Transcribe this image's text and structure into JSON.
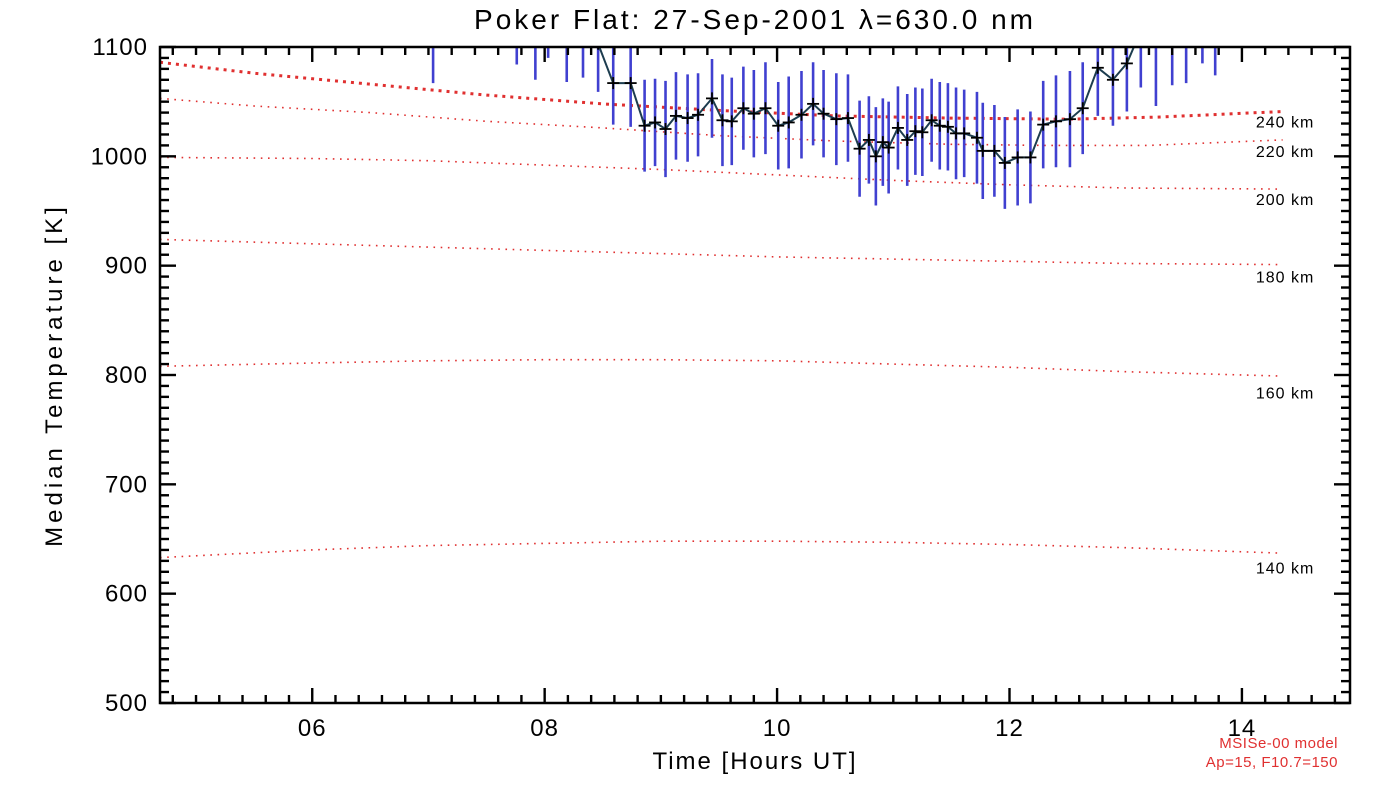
{
  "title": "Poker Flat: 27-Sep-2001 λ=630.0 nm",
  "axes": {
    "x": {
      "label": "Time [Hours UT]"
    },
    "y": {
      "label": "Median Temperature [K]"
    }
  },
  "annotation": {
    "line1": "MSISe-00 model",
    "line2": "Ap=15, F10.7=150"
  },
  "chart_data": {
    "type": "line",
    "title": "Poker Flat: 27-Sep-2001 λ=630.0 nm",
    "xlabel": "Time [Hours UT]",
    "ylabel": "Median Temperature [K]",
    "xlim": [
      4.69,
      14.93
    ],
    "ylim": [
      500,
      1100
    ],
    "grid": false,
    "x_major_ticks": [
      6,
      8,
      10,
      12,
      14
    ],
    "x_tick_labels": [
      "06",
      "08",
      "10",
      "12",
      "14"
    ],
    "x_minor_step": 0.2,
    "y_major_ticks": [
      500,
      600,
      700,
      800,
      900,
      1000,
      1100
    ],
    "y_tick_labels": [
      "500",
      "600",
      "700",
      "800",
      "900",
      "1000",
      "1100"
    ],
    "y_minor_step": 10,
    "model_color": "#e03030",
    "annotations": [
      "MSISe-00 model",
      "Ap=15, F10.7=150"
    ],
    "series": [
      {
        "name": "median-temperature",
        "marker": "plus",
        "color": "#1d3d4f",
        "marker_color": "#000000",
        "error_color": "#4040d0",
        "points": [
          [
            7.04,
            1112,
            45
          ],
          [
            7.17,
            1150,
            40
          ],
          [
            7.3,
            1155,
            40
          ],
          [
            7.43,
            1152,
            40
          ],
          [
            7.56,
            1148,
            40
          ],
          [
            7.66,
            1146,
            40
          ],
          [
            7.76,
            1128,
            44
          ],
          [
            7.92,
            1114,
            44
          ],
          [
            8.03,
            1134,
            44
          ],
          [
            8.19,
            1112,
            44
          ],
          [
            8.33,
            1116,
            44
          ],
          [
            8.46,
            1103,
            44
          ],
          [
            8.59,
            1067,
            38
          ],
          [
            8.74,
            1067,
            40
          ],
          [
            8.86,
            1028,
            42
          ],
          [
            8.95,
            1031,
            40
          ],
          [
            9.04,
            1025,
            44
          ],
          [
            9.13,
            1037,
            40
          ],
          [
            9.23,
            1035,
            40
          ],
          [
            9.32,
            1038,
            38
          ],
          [
            9.44,
            1053,
            36
          ],
          [
            9.53,
            1033,
            42
          ],
          [
            9.61,
            1032,
            40
          ],
          [
            9.71,
            1044,
            38
          ],
          [
            9.8,
            1039,
            40
          ],
          [
            9.9,
            1044,
            42
          ],
          [
            10.01,
            1028,
            40
          ],
          [
            10.1,
            1031,
            42
          ],
          [
            10.21,
            1038,
            40
          ],
          [
            10.31,
            1048,
            38
          ],
          [
            10.4,
            1039,
            40
          ],
          [
            10.51,
            1034,
            42
          ],
          [
            10.61,
            1035,
            40
          ],
          [
            10.71,
            1007,
            44
          ],
          [
            10.79,
            1015,
            40
          ],
          [
            10.85,
            1000,
            45
          ],
          [
            10.91,
            1013,
            40
          ],
          [
            10.96,
            1008,
            42
          ],
          [
            11.04,
            1026,
            38
          ],
          [
            11.12,
            1015,
            42
          ],
          [
            11.19,
            1023,
            40
          ],
          [
            11.25,
            1022,
            40
          ],
          [
            11.33,
            1033,
            38
          ],
          [
            11.4,
            1028,
            40
          ],
          [
            11.47,
            1027,
            40
          ],
          [
            11.54,
            1021,
            42
          ],
          [
            11.61,
            1021,
            40
          ],
          [
            11.72,
            1017,
            42
          ],
          [
            11.77,
            1005,
            44
          ],
          [
            11.87,
            1005,
            42
          ],
          [
            11.96,
            994,
            42
          ],
          [
            12.07,
            999,
            44
          ],
          [
            12.18,
            999,
            42
          ],
          [
            12.29,
            1029,
            40
          ],
          [
            12.4,
            1032,
            42
          ],
          [
            12.52,
            1034,
            44
          ],
          [
            12.63,
            1044,
            42
          ],
          [
            12.76,
            1081,
            44
          ],
          [
            12.89,
            1070,
            42
          ],
          [
            13.01,
            1085,
            44
          ],
          [
            13.13,
            1115,
            52
          ],
          [
            13.26,
            1118,
            72
          ],
          [
            13.4,
            1122,
            57
          ],
          [
            13.52,
            1125,
            58
          ],
          [
            13.66,
            1140,
            55
          ],
          [
            13.77,
            1130,
            56
          ]
        ]
      }
    ],
    "model_curves": [
      {
        "name": "240km",
        "label": "240 km",
        "bold": true,
        "label_at": [
          14.12,
          1031
        ],
        "points": [
          [
            4.69,
            1086
          ],
          [
            5.5,
            1076
          ],
          [
            6.5,
            1066
          ],
          [
            7.5,
            1056
          ],
          [
            8.5,
            1048
          ],
          [
            9.5,
            1042
          ],
          [
            10.5,
            1037
          ],
          [
            11.5,
            1035
          ],
          [
            12.5,
            1034
          ],
          [
            13.3,
            1036
          ],
          [
            14.35,
            1041
          ]
        ]
      },
      {
        "name": "220km",
        "label": "220 km",
        "bold": false,
        "label_at": [
          14.12,
          1004
        ],
        "points": [
          [
            4.69,
            1053
          ],
          [
            5.5,
            1046
          ],
          [
            6.5,
            1040
          ],
          [
            7.5,
            1032
          ],
          [
            8.5,
            1026
          ],
          [
            9.5,
            1019
          ],
          [
            10.5,
            1014
          ],
          [
            11.5,
            1011
          ],
          [
            12.3,
            1010
          ],
          [
            13.2,
            1010
          ],
          [
            14.35,
            1015
          ]
        ]
      },
      {
        "name": "200km",
        "label": "200 km",
        "bold": false,
        "label_at": [
          14.12,
          960
        ],
        "points": [
          [
            4.69,
            999
          ],
          [
            6,
            998
          ],
          [
            7,
            996
          ],
          [
            8,
            992
          ],
          [
            9,
            988
          ],
          [
            10,
            983
          ],
          [
            11,
            978
          ],
          [
            12,
            974
          ],
          [
            13,
            971
          ],
          [
            14.35,
            970
          ]
        ]
      },
      {
        "name": "180km",
        "label": "180 km",
        "bold": false,
        "label_at": [
          14.12,
          889
        ],
        "points": [
          [
            4.69,
            924
          ],
          [
            6,
            920
          ],
          [
            7,
            917
          ],
          [
            8,
            914
          ],
          [
            9,
            911
          ],
          [
            10,
            908
          ],
          [
            11,
            906
          ],
          [
            12,
            904
          ],
          [
            13,
            902
          ],
          [
            14.35,
            901
          ]
        ]
      },
      {
        "name": "160km",
        "label": "160 km",
        "bold": false,
        "label_at": [
          14.12,
          783
        ],
        "points": [
          [
            4.69,
            808
          ],
          [
            6,
            811
          ],
          [
            7,
            813
          ],
          [
            8,
            814
          ],
          [
            9,
            814
          ],
          [
            10,
            813
          ],
          [
            11,
            810
          ],
          [
            12,
            807
          ],
          [
            13,
            803
          ],
          [
            14.35,
            799
          ]
        ]
      },
      {
        "name": "140km",
        "label": "140 km",
        "bold": false,
        "label_at": [
          14.12,
          623
        ],
        "points": [
          [
            4.69,
            633
          ],
          [
            6,
            640
          ],
          [
            7,
            644
          ],
          [
            8,
            646
          ],
          [
            9,
            648
          ],
          [
            10,
            648
          ],
          [
            11,
            647
          ],
          [
            12,
            645
          ],
          [
            13,
            642
          ],
          [
            14.35,
            637
          ]
        ]
      }
    ]
  }
}
